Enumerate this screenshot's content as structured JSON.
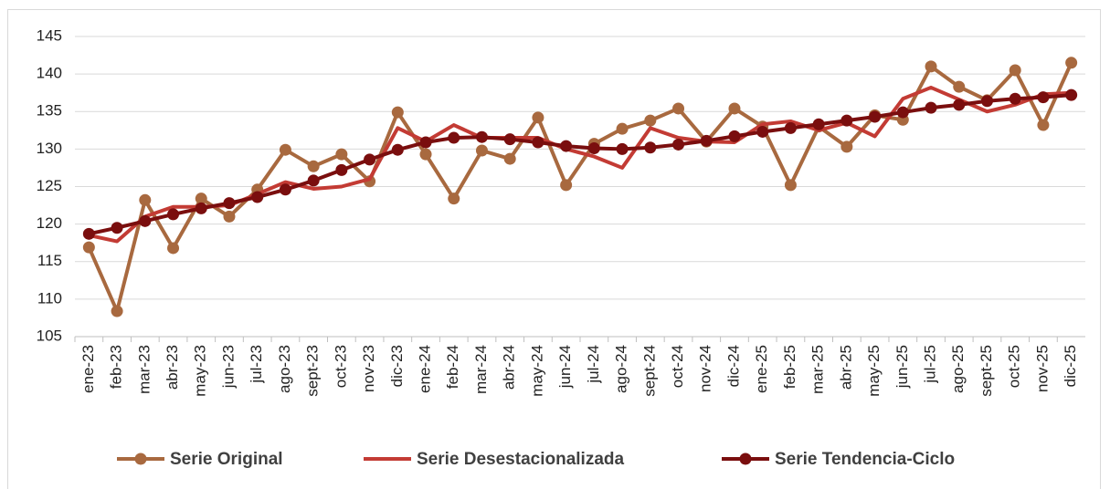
{
  "chart_data": {
    "type": "line",
    "categories": [
      "ene-23",
      "feb-23",
      "mar-23",
      "abr-23",
      "may-23",
      "jun-23",
      "jul-23",
      "ago-23",
      "sept-23",
      "oct-23",
      "nov-23",
      "dic-23",
      "ene-24",
      "feb-24",
      "mar-24",
      "abr-24",
      "may-24",
      "jun-24",
      "jul-24",
      "ago-24",
      "sept-24",
      "oct-24",
      "nov-24",
      "dic-24",
      "ene-25",
      "feb-25",
      "mar-25",
      "abr-25",
      "may-25",
      "jun-25",
      "jul-25",
      "ago-25",
      "sept-25",
      "oct-25",
      "nov-25",
      "dic-25"
    ],
    "series": [
      {
        "name": "Serie Original",
        "color": "#a8693f",
        "marker": true,
        "values": [
          116.9,
          108.4,
          123.2,
          116.8,
          123.4,
          121.0,
          124.6,
          129.9,
          127.7,
          129.3,
          125.7,
          134.9,
          129.3,
          123.4,
          129.8,
          128.7,
          134.2,
          125.2,
          130.7,
          132.7,
          133.8,
          135.4,
          131.0,
          135.4,
          133.0,
          125.2,
          133.0,
          130.3,
          134.5,
          133.9,
          141.0,
          138.3,
          136.5,
          140.5,
          133.2,
          141.5
        ]
      },
      {
        "name": "Serie Desestacionalizada",
        "color": "#c33b34",
        "marker": false,
        "values": [
          118.5,
          117.7,
          121.0,
          122.3,
          122.3,
          122.5,
          124.0,
          125.6,
          124.7,
          125.0,
          126.0,
          132.8,
          131.0,
          133.2,
          131.5,
          131.5,
          131.5,
          130.0,
          129.0,
          127.5,
          132.8,
          131.5,
          131.0,
          130.9,
          133.3,
          133.7,
          132.5,
          133.5,
          131.7,
          136.7,
          138.2,
          136.6,
          135.0,
          135.9,
          137.3,
          137.5
        ]
      },
      {
        "name": "Serie Tendencia-Ciclo",
        "color": "#7a0e0e",
        "marker": true,
        "values": [
          118.7,
          119.5,
          120.4,
          121.3,
          122.1,
          122.8,
          123.6,
          124.6,
          125.8,
          127.2,
          128.6,
          129.9,
          130.9,
          131.5,
          131.6,
          131.3,
          130.9,
          130.4,
          130.1,
          130.0,
          130.2,
          130.6,
          131.1,
          131.7,
          132.3,
          132.8,
          133.3,
          133.8,
          134.3,
          134.9,
          135.5,
          135.9,
          136.4,
          136.7,
          136.9,
          137.2
        ]
      }
    ],
    "ylim": [
      105,
      145
    ],
    "yticks": [
      105,
      110,
      115,
      120,
      125,
      130,
      135,
      140,
      145
    ],
    "grid": true,
    "legend": "bottom"
  }
}
